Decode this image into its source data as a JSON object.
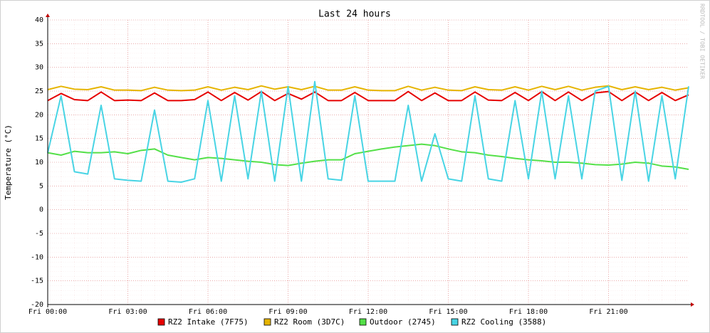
{
  "chart_data": {
    "type": "line",
    "title": "Last 24 hours",
    "y_label": "Temperature (°C)",
    "watermark": "RRDTOOL / TOBI OETIKER",
    "x": [
      0,
      0.5,
      1,
      1.5,
      2,
      2.5,
      3,
      3.5,
      4,
      4.5,
      5,
      5.5,
      6,
      6.5,
      7,
      7.5,
      8,
      8.5,
      9,
      9.5,
      10,
      10.5,
      11,
      11.5,
      12,
      12.5,
      13,
      13.5,
      14,
      14.5,
      15,
      15.5,
      16,
      16.5,
      17,
      17.5,
      18,
      18.5,
      19,
      19.5,
      20,
      20.5,
      21,
      21.5,
      22,
      22.5,
      23,
      23.5,
      24
    ],
    "xlim": [
      0,
      24
    ],
    "xticks": [
      {
        "value": 0,
        "label": "Fri 00:00"
      },
      {
        "value": 3,
        "label": "Fri 03:00"
      },
      {
        "value": 6,
        "label": "Fri 06:00"
      },
      {
        "value": 9,
        "label": "Fri 09:00"
      },
      {
        "value": 12,
        "label": "Fri 12:00"
      },
      {
        "value": 15,
        "label": "Fri 15:00"
      },
      {
        "value": 18,
        "label": "Fri 18:00"
      },
      {
        "value": 21,
        "label": "Fri 21:00"
      }
    ],
    "ylim": [
      -20,
      40
    ],
    "yticks": [
      -20,
      -15,
      -10,
      -5,
      0,
      5,
      10,
      15,
      20,
      25,
      30,
      35,
      40
    ],
    "grid": true,
    "series": [
      {
        "name": "RZ2 Intake (7F75)",
        "color": "#e60000",
        "values": [
          23,
          24.5,
          23.2,
          23,
          24.8,
          23,
          23.1,
          23,
          24.6,
          23,
          23,
          23.2,
          24.8,
          23,
          24.7,
          23.1,
          24.9,
          23,
          24.5,
          23.3,
          24.8,
          23,
          23,
          24.7,
          23,
          23,
          23,
          24.9,
          23,
          24.6,
          23,
          23,
          24.8,
          23.1,
          23,
          24.7,
          23,
          24.9,
          23,
          24.8,
          23,
          24.6,
          24.9,
          23,
          24.8,
          23,
          24.7,
          23,
          24.2
        ]
      },
      {
        "name": "RZ2 Room (3D7C)",
        "color": "#e6b400",
        "values": [
          25.3,
          26,
          25.4,
          25.3,
          25.9,
          25.2,
          25.2,
          25.1,
          25.8,
          25.2,
          25.1,
          25.2,
          25.9,
          25.2,
          25.8,
          25.3,
          26.1,
          25.4,
          25.9,
          25.3,
          26,
          25.2,
          25.2,
          25.9,
          25.2,
          25.1,
          25.1,
          26,
          25.2,
          25.8,
          25.2,
          25.1,
          25.9,
          25.3,
          25.2,
          25.9,
          25.2,
          26,
          25.3,
          26,
          25.2,
          25.8,
          26.1,
          25.3,
          25.9,
          25.3,
          25.8,
          25.2,
          25.7
        ]
      },
      {
        "name": "Outdoor (2745)",
        "color": "#54e048",
        "values": [
          12,
          11.5,
          12.3,
          12,
          12,
          12.2,
          11.8,
          12.5,
          12.8,
          11.5,
          11,
          10.5,
          11,
          10.8,
          10.5,
          10.2,
          10,
          9.5,
          9.3,
          9.8,
          10.2,
          10.5,
          10.5,
          11.8,
          12.3,
          12.8,
          13.2,
          13.5,
          13.8,
          13.5,
          12.8,
          12.2,
          12,
          11.5,
          11.2,
          10.8,
          10.5,
          10.3,
          10,
          10,
          9.8,
          9.5,
          9.4,
          9.6,
          10,
          9.8,
          9.2,
          9,
          8.5
        ]
      },
      {
        "name": "RZ2 Cooling (3588)",
        "color": "#48d4e4",
        "values": [
          12,
          24,
          8,
          7.5,
          22,
          6.5,
          6.2,
          6,
          21,
          6,
          5.8,
          6.5,
          23,
          6,
          24,
          6.5,
          25,
          6,
          26,
          6,
          27,
          6.5,
          6.2,
          24,
          6,
          6,
          6,
          22,
          6,
          16,
          6.5,
          6,
          24,
          6.5,
          6,
          23,
          6.5,
          25,
          6.5,
          24,
          6.5,
          25,
          26,
          6.2,
          25,
          6,
          24,
          6.5,
          26
        ]
      }
    ]
  }
}
